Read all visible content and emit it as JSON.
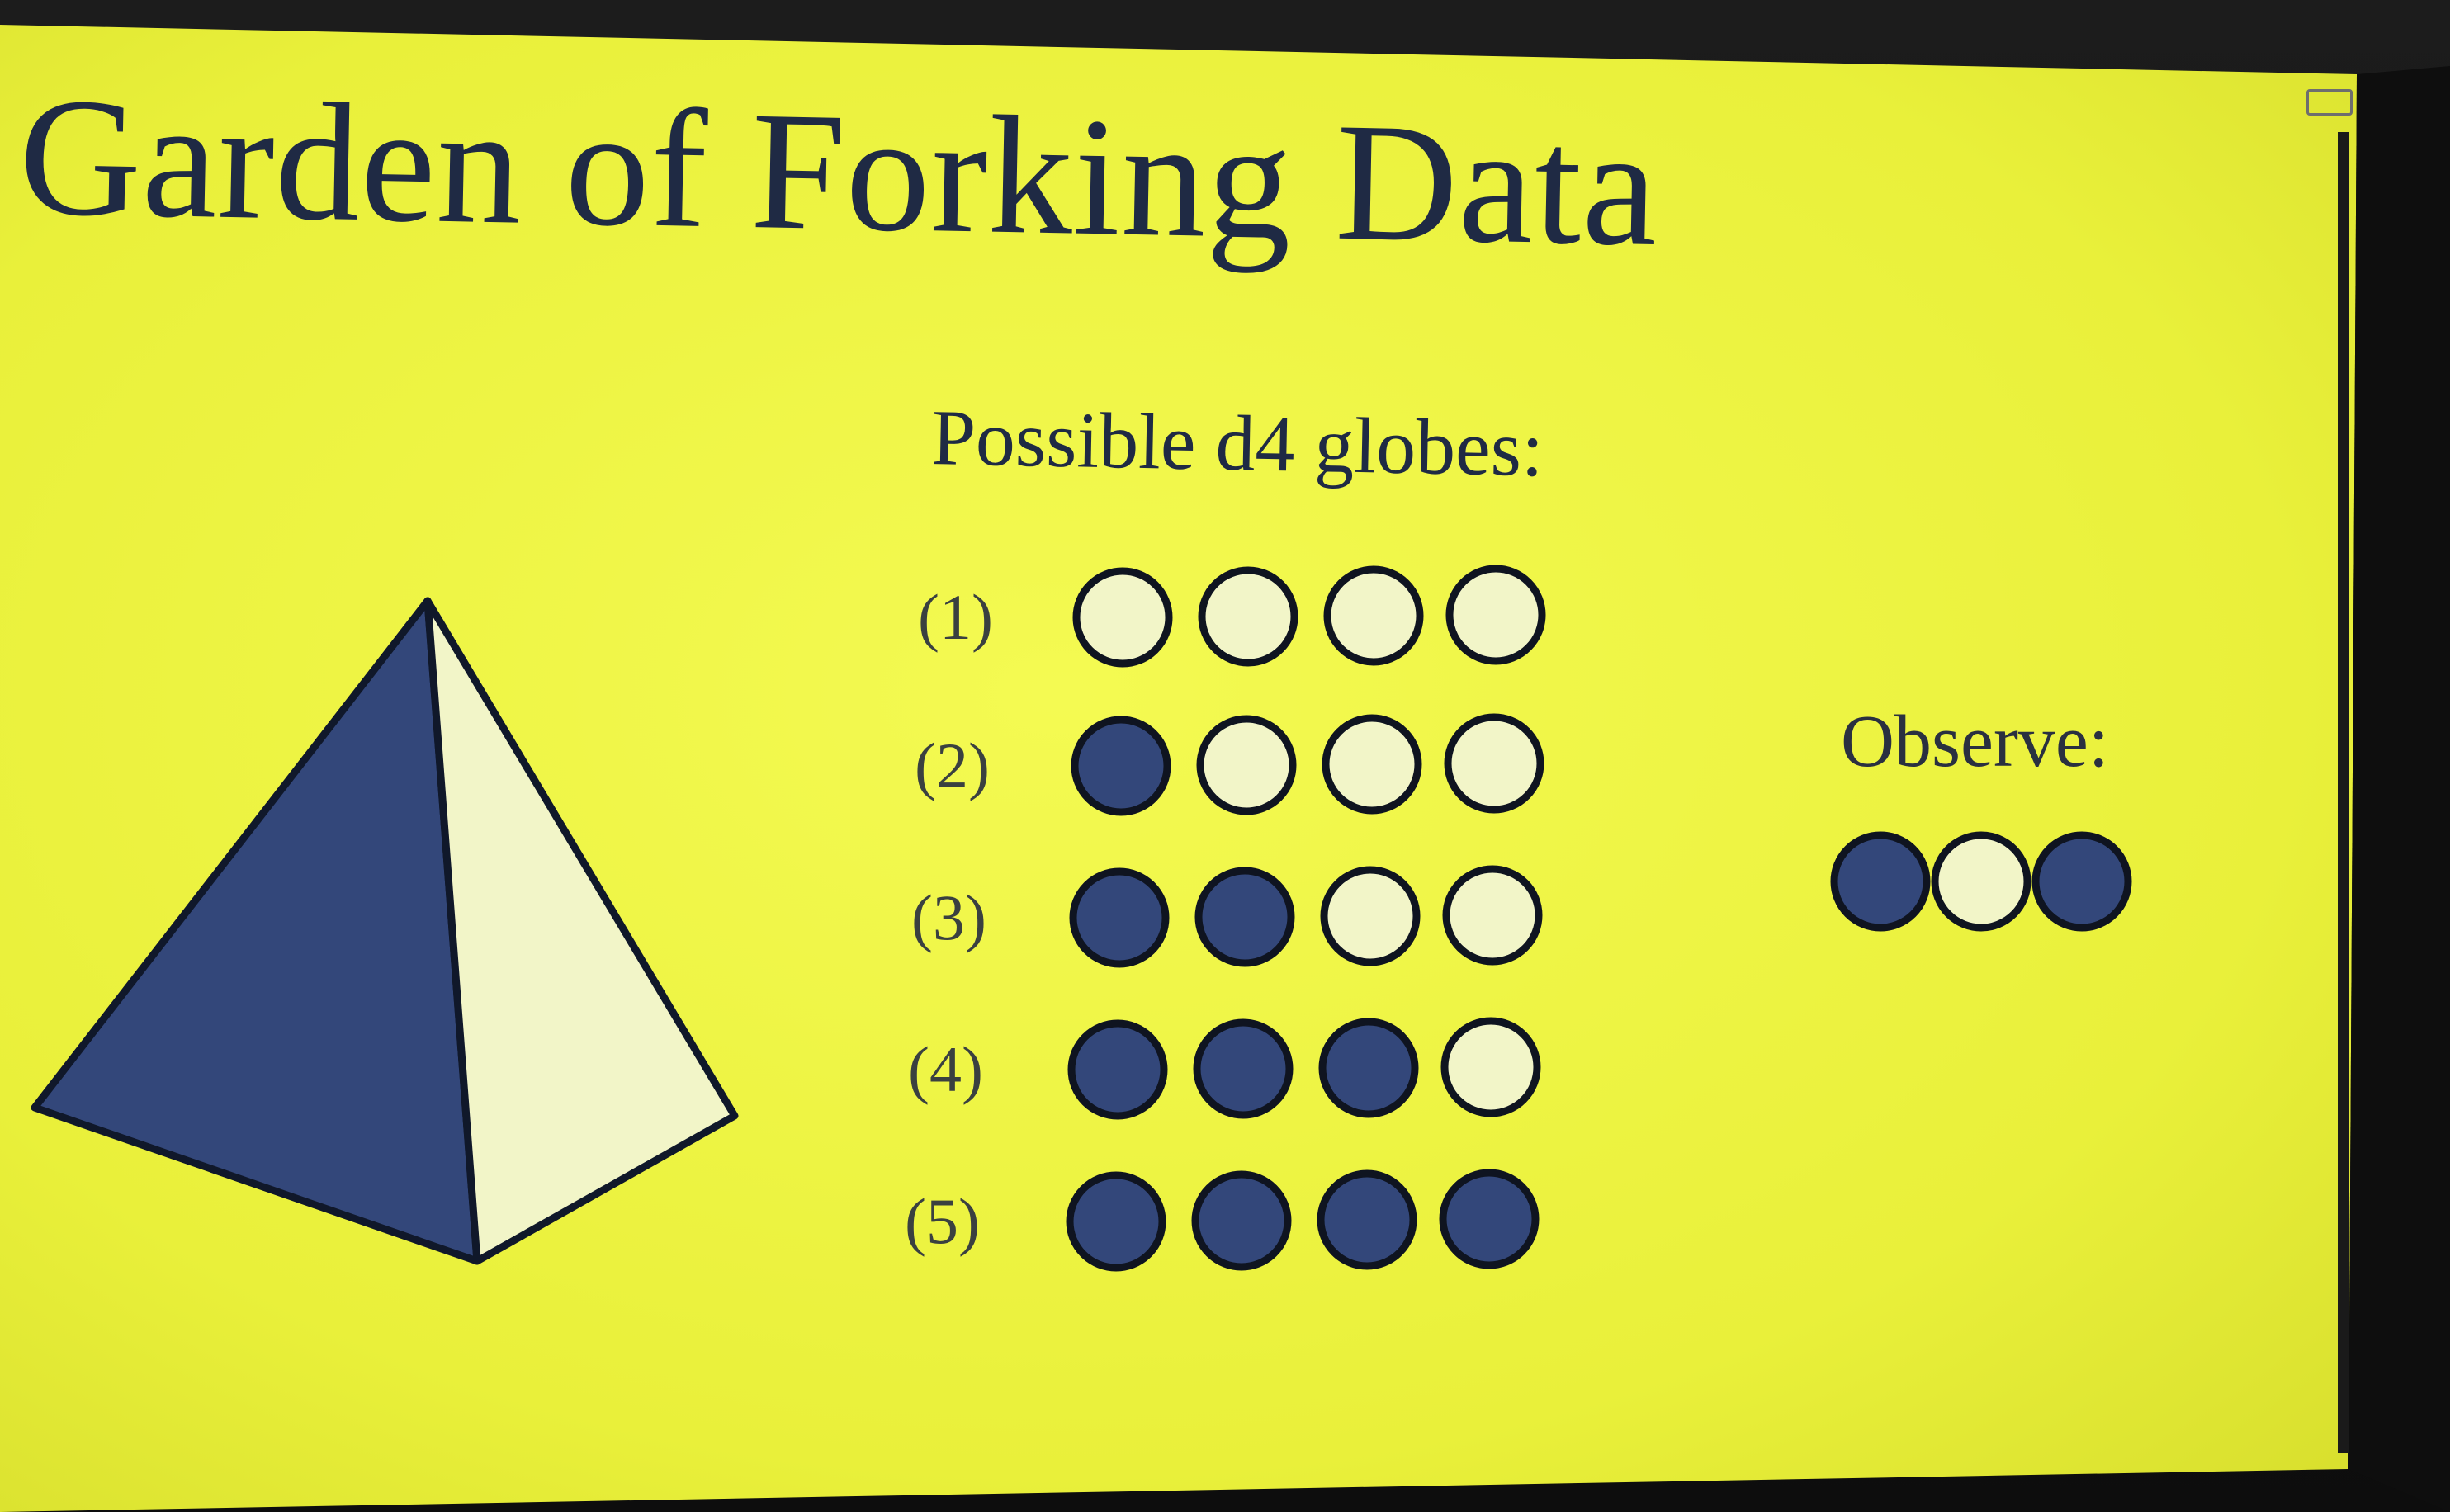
{
  "slide": {
    "title": "Garden of Forking Data",
    "heading": "Possible d4 globes:",
    "observe_label": "Observe:",
    "colors": {
      "background": "#eef43a",
      "marble_blue": "#33477a",
      "marble_white": "#f2f5c8",
      "outline": "#0f1420",
      "text": "#1f2a44"
    },
    "globes": [
      {
        "label": "(1)",
        "marbles": [
          "white",
          "white",
          "white",
          "white"
        ]
      },
      {
        "label": "(2)",
        "marbles": [
          "blue",
          "white",
          "white",
          "white"
        ]
      },
      {
        "label": "(3)",
        "marbles": [
          "blue",
          "blue",
          "white",
          "white"
        ]
      },
      {
        "label": "(4)",
        "marbles": [
          "blue",
          "blue",
          "blue",
          "white"
        ]
      },
      {
        "label": "(5)",
        "marbles": [
          "blue",
          "blue",
          "blue",
          "blue"
        ]
      }
    ],
    "observation": [
      "blue",
      "white",
      "blue"
    ],
    "illustration": {
      "shape": "tetrahedron",
      "faces": [
        "blue",
        "white"
      ]
    }
  }
}
